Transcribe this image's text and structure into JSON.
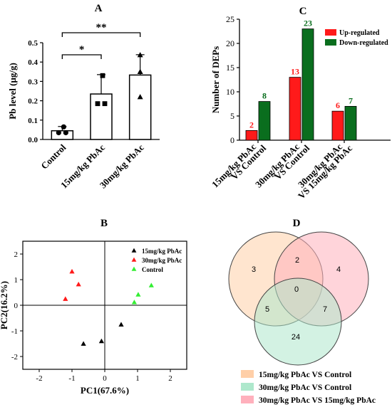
{
  "chart_data": [
    {
      "panel": "A",
      "type": "bar",
      "categories": [
        "Control",
        "15mg/kg PbAc",
        "30mg/kg PbAc"
      ],
      "values": [
        0.045,
        0.235,
        0.333
      ],
      "errors": [
        0.022,
        0.1,
        0.105
      ],
      "points": [
        [
          0.065,
          0.035,
          0.035
        ],
        [
          0.33,
          0.185,
          0.185
        ],
        [
          0.437,
          0.35,
          0.22
        ]
      ],
      "ylabel": "Pb level (μg/g)",
      "ylim": [
        0,
        0.5
      ],
      "yticks": [
        "0.0",
        "0.1",
        "0.2",
        "0.3",
        "0.4",
        "0.5"
      ],
      "significance": [
        {
          "from": "Control",
          "to": "15mg/kg PbAc",
          "label": "*"
        },
        {
          "from": "Control",
          "to": "30mg/kg PbAc",
          "label": "**"
        }
      ]
    },
    {
      "panel": "C",
      "type": "bar",
      "categories": [
        "15mg/kg PbAc VS Control",
        "30mg/kg PbAc VS Control",
        "30mg/kg PbAc VS 15mg/kg PbAc"
      ],
      "category_lines": [
        [
          "15mg/kg PbAc",
          "VS Control"
        ],
        [
          "30mg/kg PbAc",
          "VS Control"
        ],
        [
          "30mg/kg PbAc",
          "VS 15mg/kg PbAc"
        ]
      ],
      "series": [
        {
          "name": "Up-regulated",
          "values": [
            2,
            13,
            6
          ],
          "color": "#ff1a1a"
        },
        {
          "name": "Down-regulated",
          "values": [
            8,
            23,
            7
          ],
          "color": "#0a6e1e"
        }
      ],
      "data_labels": [
        [
          "2",
          "13",
          "6"
        ],
        [
          "8",
          "23",
          "7"
        ]
      ],
      "ylabel": "Number of DEPs",
      "ylim": [
        0,
        25
      ],
      "yticks": [
        "0",
        "5",
        "10",
        "15",
        "20",
        "25"
      ],
      "legend": "top-right"
    },
    {
      "panel": "B",
      "type": "scatter",
      "xlabel": "PC1(67.6%)",
      "ylabel": "PC2(16.2%)",
      "xlim": [
        -2.5,
        2.5
      ],
      "ylim": [
        -2.5,
        2.5
      ],
      "xticks": [
        "-2",
        "-1",
        "0",
        "1",
        "2"
      ],
      "yticks": [
        "-2",
        "-1",
        "0",
        "1",
        "2"
      ],
      "series": [
        {
          "name": "15mg/kg PbAc",
          "color": "#000000",
          "x": [
            -0.65,
            -0.1,
            0.5
          ],
          "y": [
            -1.5,
            -1.4,
            -0.75
          ]
        },
        {
          "name": "30mg/kg PbAc",
          "color": "#ff1a1a",
          "x": [
            -1.2,
            -1.0,
            -0.8
          ],
          "y": [
            0.25,
            1.32,
            0.82
          ]
        },
        {
          "name": "Control",
          "color": "#33ee33",
          "x": [
            0.9,
            1.02,
            1.42
          ],
          "y": [
            0.12,
            0.42,
            0.78
          ]
        }
      ],
      "legend": "top-right"
    },
    {
      "panel": "D",
      "type": "venn",
      "sets": [
        {
          "name": "15mg/kg PbAc VS Control",
          "color": "#ffcfa8"
        },
        {
          "name": "30mg/kg PbAc VS Control",
          "color": "#aee8cc"
        },
        {
          "name": "30mg/kg PbAc VS 15mg/kg PbAc",
          "color": "#ffb0bc"
        }
      ],
      "regions": {
        "only_1": "3",
        "only_3": "4",
        "only_2": "24",
        "1_3": "2",
        "1_2": "5",
        "2_3": "7",
        "1_2_3": "0"
      }
    }
  ],
  "panel_labels": {
    "a": "A",
    "b": "B",
    "c": "C",
    "d": "D"
  }
}
